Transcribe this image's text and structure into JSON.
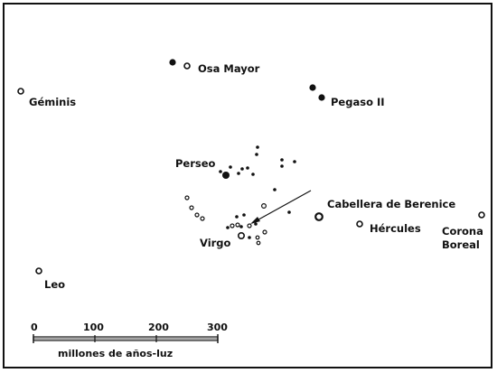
{
  "labels": {
    "osa_mayor": "Osa Mayor",
    "geminis": "Géminis",
    "pegaso": "Pegaso II",
    "perseo": "Perseo",
    "cabellera": "Cabellera de Berenice",
    "hercules": "Hércules",
    "corona_1": "Corona",
    "corona_2": "Boreal",
    "virgo": "Virgo",
    "leo": "Leo"
  },
  "scale": {
    "ticks": [
      "0",
      "100",
      "200",
      "300"
    ],
    "caption": "millones de años-luz"
  },
  "colors": {
    "ink": "#111111",
    "background": "#ffffff"
  }
}
